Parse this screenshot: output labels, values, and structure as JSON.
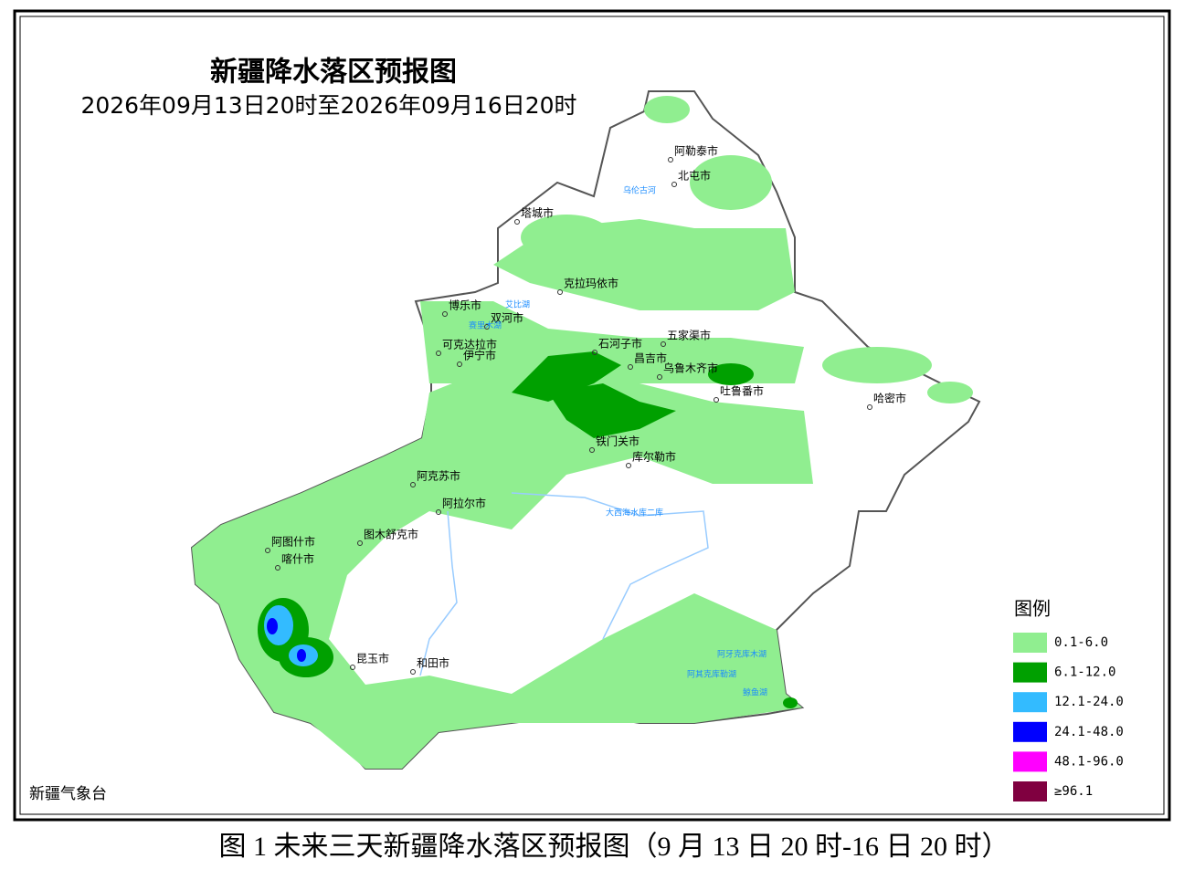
{
  "header": {
    "title": "新疆降水落区预报图",
    "subtitle": "2026年09月13日20时至2026年09月16日20时"
  },
  "cities": [
    "阿勒泰市",
    "北屯市",
    "塔城市",
    "克拉玛依市",
    "博乐市",
    "双河市",
    "可克达拉市",
    "伊宁市",
    "石河子市",
    "五家渠市",
    "昌吉市",
    "乌鲁木齐市",
    "吐鲁番市",
    "哈密市",
    "铁门关市",
    "库尔勒市",
    "阿克苏市",
    "阿拉尔市",
    "图木舒克市",
    "阿图什市",
    "喀什市",
    "昆玉市",
    "和田市"
  ],
  "water_labels": [
    "乌伦古河",
    "艾比湖",
    "赛里木湖",
    "大西海水库二库",
    "阿牙克库木湖",
    "阿其克库勒湖",
    "鲸鱼湖"
  ],
  "legend": {
    "title": "图例",
    "items": [
      {
        "label": "0.1-6.0",
        "color": "#90ee90"
      },
      {
        "label": "6.1-12.0",
        "color": "#00a000"
      },
      {
        "label": "12.1-24.0",
        "color": "#33bbff"
      },
      {
        "label": "24.1-48.0",
        "color": "#0000ff"
      },
      {
        "label": "48.1-96.0",
        "color": "#ff00ff"
      },
      {
        "label": "≥96.1",
        "color": "#800040"
      }
    ]
  },
  "source": "新疆气象台",
  "caption": "图 1 未来三天新疆降水落区预报图（9 月 13 日 20 时-16 日 20 时）"
}
